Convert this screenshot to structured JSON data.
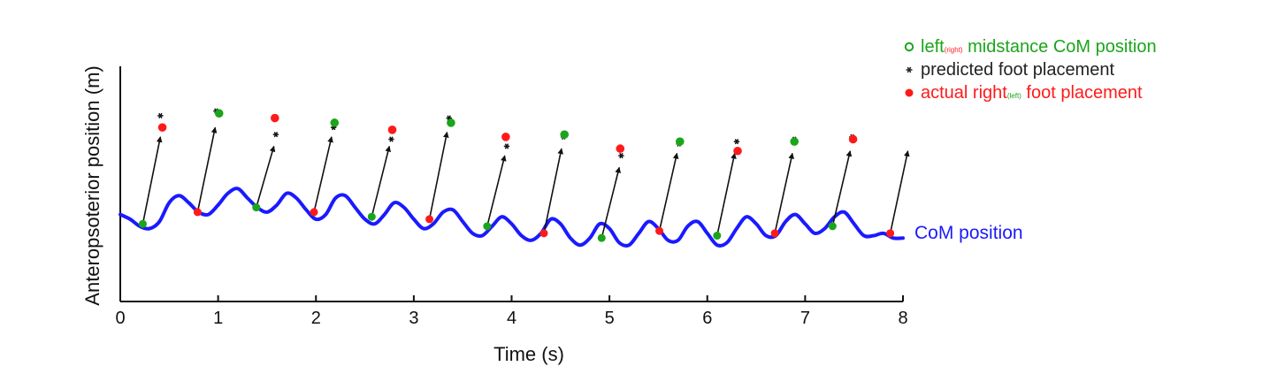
{
  "chart_data": {
    "type": "line",
    "xlabel": "Time (s)",
    "ylabel": "Anteropsoterior position (m)",
    "xlim": [
      0,
      8
    ],
    "ylim": [
      0,
      1
    ],
    "x_ticks": [
      "0",
      "1",
      "2",
      "3",
      "4",
      "5",
      "6",
      "7",
      "8"
    ],
    "grid": false,
    "legend_position": "top-right",
    "legend": [
      {
        "marker": "open-circle",
        "color": "#1aa51a",
        "text_before": "left",
        "subscript": "(right)",
        "subscript_color": "#ff2222",
        "text_after": " midstance CoM position"
      },
      {
        "marker": "asterisk",
        "color": "#222222",
        "text_before": "predicted foot placement",
        "subscript": "",
        "subscript_color": "#222222",
        "text_after": ""
      },
      {
        "marker": "filled-circle",
        "color": "#ff1a1a",
        "text_before": "actual right",
        "subscript": "(left)",
        "subscript_color": "#1aa51a",
        "text_after": " foot placement"
      }
    ],
    "series_label": "CoM position",
    "colors": {
      "com": "#1a1aff",
      "left": "#1aa51a",
      "right": "#ff1a1a",
      "predicted": "#111111"
    },
    "com_curve": {
      "x": [
        0.0,
        0.1,
        0.2,
        0.3,
        0.4,
        0.5,
        0.6,
        0.7,
        0.8,
        0.9,
        1.0,
        1.1,
        1.2,
        1.3,
        1.4,
        1.5,
        1.6,
        1.7,
        1.8,
        1.9,
        2.0,
        2.1,
        2.2,
        2.3,
        2.4,
        2.5,
        2.6,
        2.7,
        2.8,
        2.9,
        3.0,
        3.1,
        3.2,
        3.3,
        3.4,
        3.5,
        3.6,
        3.7,
        3.8,
        3.9,
        4.0,
        4.1,
        4.2,
        4.3,
        4.4,
        4.5,
        4.6,
        4.7,
        4.8,
        4.9,
        5.0,
        5.1,
        5.2,
        5.3,
        5.4,
        5.5,
        5.6,
        5.7,
        5.8,
        5.9,
        6.0,
        6.1,
        6.2,
        6.3,
        6.4,
        6.5,
        6.6,
        6.7,
        6.8,
        6.9,
        7.0,
        7.1,
        7.2,
        7.3,
        7.4,
        7.5,
        7.6,
        7.7,
        7.8,
        7.9,
        8.0
      ],
      "y": [
        0.37,
        0.35,
        0.32,
        0.31,
        0.34,
        0.42,
        0.45,
        0.42,
        0.38,
        0.37,
        0.41,
        0.46,
        0.48,
        0.44,
        0.4,
        0.38,
        0.41,
        0.46,
        0.44,
        0.39,
        0.35,
        0.37,
        0.44,
        0.45,
        0.4,
        0.35,
        0.33,
        0.37,
        0.42,
        0.4,
        0.35,
        0.31,
        0.33,
        0.38,
        0.39,
        0.34,
        0.29,
        0.28,
        0.32,
        0.36,
        0.33,
        0.28,
        0.26,
        0.29,
        0.35,
        0.33,
        0.27,
        0.24,
        0.27,
        0.33,
        0.31,
        0.25,
        0.24,
        0.29,
        0.34,
        0.31,
        0.26,
        0.26,
        0.32,
        0.34,
        0.29,
        0.24,
        0.25,
        0.31,
        0.36,
        0.33,
        0.28,
        0.28,
        0.34,
        0.37,
        0.33,
        0.29,
        0.31,
        0.36,
        0.38,
        0.33,
        0.28,
        0.28,
        0.29,
        0.27,
        0.27
      ]
    },
    "steps": [
      {
        "t": 0.23,
        "com_y": 0.33,
        "com_foot": "left",
        "arrow_end_y": 0.7,
        "pred_x": 0.41,
        "pred_y": 0.79,
        "actual_x": 0.43,
        "actual_y": 0.74,
        "actual_foot": "right"
      },
      {
        "t": 0.79,
        "com_y": 0.38,
        "com_foot": "right",
        "arrow_end_y": 0.74,
        "pred_x": 0.98,
        "pred_y": 0.81,
        "actual_x": 1.01,
        "actual_y": 0.8,
        "actual_foot": "left"
      },
      {
        "t": 1.39,
        "com_y": 0.4,
        "com_foot": "left",
        "arrow_end_y": 0.66,
        "pred_x": 1.59,
        "pred_y": 0.71,
        "actual_x": 1.58,
        "actual_y": 0.78,
        "actual_foot": "right"
      },
      {
        "t": 1.98,
        "com_y": 0.38,
        "com_foot": "right",
        "arrow_end_y": 0.7,
        "pred_x": 2.18,
        "pred_y": 0.74,
        "actual_x": 2.19,
        "actual_y": 0.76,
        "actual_foot": "left"
      },
      {
        "t": 2.57,
        "com_y": 0.36,
        "com_foot": "left",
        "arrow_end_y": 0.66,
        "pred_x": 2.77,
        "pred_y": 0.69,
        "actual_x": 2.78,
        "actual_y": 0.73,
        "actual_foot": "right"
      },
      {
        "t": 3.16,
        "com_y": 0.35,
        "com_foot": "right",
        "arrow_end_y": 0.72,
        "pred_x": 3.36,
        "pred_y": 0.78,
        "actual_x": 3.38,
        "actual_y": 0.76,
        "actual_foot": "left"
      },
      {
        "t": 3.75,
        "com_y": 0.32,
        "com_foot": "left",
        "arrow_end_y": 0.62,
        "pred_x": 3.95,
        "pred_y": 0.66,
        "actual_x": 3.94,
        "actual_y": 0.7,
        "actual_foot": "right"
      },
      {
        "t": 4.33,
        "com_y": 0.29,
        "com_foot": "right",
        "arrow_end_y": 0.65,
        "pred_x": 4.53,
        "pred_y": 0.7,
        "actual_x": 4.54,
        "actual_y": 0.71,
        "actual_foot": "left"
      },
      {
        "t": 4.92,
        "com_y": 0.27,
        "com_foot": "left",
        "arrow_end_y": 0.57,
        "pred_x": 5.12,
        "pred_y": 0.62,
        "actual_x": 5.11,
        "actual_y": 0.65,
        "actual_foot": "right"
      },
      {
        "t": 5.51,
        "com_y": 0.3,
        "com_foot": "right",
        "arrow_end_y": 0.63,
        "pred_x": 5.71,
        "pred_y": 0.67,
        "actual_x": 5.72,
        "actual_y": 0.68,
        "actual_foot": "left"
      },
      {
        "t": 6.1,
        "com_y": 0.28,
        "com_foot": "left",
        "arrow_end_y": 0.63,
        "pred_x": 6.3,
        "pred_y": 0.68,
        "actual_x": 6.31,
        "actual_y": 0.64,
        "actual_foot": "right"
      },
      {
        "t": 6.69,
        "com_y": 0.29,
        "com_foot": "right",
        "arrow_end_y": 0.63,
        "pred_x": 6.89,
        "pred_y": 0.69,
        "actual_x": 6.89,
        "actual_y": 0.68,
        "actual_foot": "left"
      },
      {
        "t": 7.28,
        "com_y": 0.32,
        "com_foot": "left",
        "arrow_end_y": 0.64,
        "pred_x": 7.48,
        "pred_y": 0.7,
        "actual_x": 7.49,
        "actual_y": 0.69,
        "actual_foot": "right"
      },
      {
        "t": 7.87,
        "com_y": 0.29,
        "com_foot": "right",
        "arrow_end_y": 0.64,
        "pred_x": null,
        "pred_y": null,
        "actual_x": null,
        "actual_y": null,
        "actual_foot": null
      }
    ]
  }
}
